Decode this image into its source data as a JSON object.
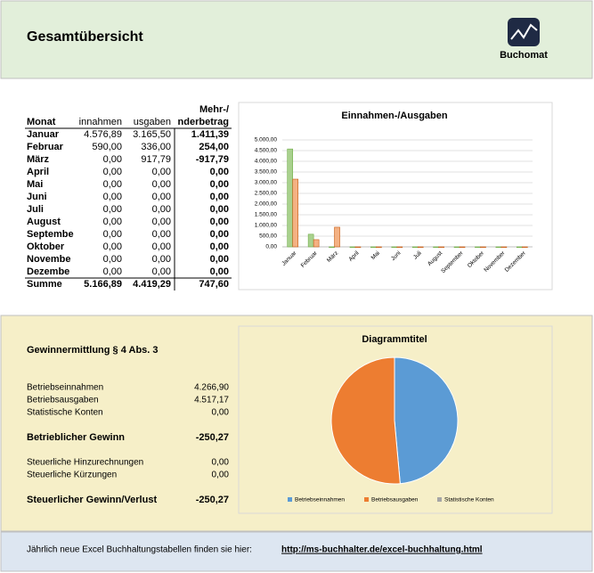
{
  "header": {
    "title": "Gesamtübersicht",
    "logo": "Buchomat"
  },
  "table": {
    "column_prefix": "Mehr-/",
    "columns": [
      "Monat",
      "innahmen",
      "usgaben",
      "nderbetrag"
    ],
    "rows": [
      [
        "Januar",
        "4.576,89",
        "3.165,50",
        "1.411,39"
      ],
      [
        "Februar",
        "590,00",
        "336,00",
        "254,00"
      ],
      [
        "März",
        "0,00",
        "917,79",
        "-917,79"
      ],
      [
        "April",
        "0,00",
        "0,00",
        "0,00"
      ],
      [
        "Mai",
        "0,00",
        "0,00",
        "0,00"
      ],
      [
        "Juni",
        "0,00",
        "0,00",
        "0,00"
      ],
      [
        "Juli",
        "0,00",
        "0,00",
        "0,00"
      ],
      [
        "August",
        "0,00",
        "0,00",
        "0,00"
      ],
      [
        "Septembe",
        "0,00",
        "0,00",
        "0,00"
      ],
      [
        "Oktober",
        "0,00",
        "0,00",
        "0,00"
      ],
      [
        "Novembe",
        "0,00",
        "0,00",
        "0,00"
      ],
      [
        "Dezembe",
        "0,00",
        "0,00",
        "0,00"
      ]
    ],
    "total": [
      "Summe",
      "5.166,89",
      "4.419,29",
      "747,60"
    ]
  },
  "chart_data": [
    {
      "type": "bar",
      "title": "Einnahmen-/Ausgaben",
      "categories": [
        "Januar",
        "Februar",
        "März",
        "April",
        "Mai",
        "Juni",
        "Juli",
        "August",
        "September",
        "Oktober",
        "November",
        "Dezember"
      ],
      "series": [
        {
          "color": "#a9d18e",
          "values": [
            4576.89,
            590,
            0,
            0,
            0,
            0,
            0,
            0,
            0,
            0,
            0,
            0
          ]
        },
        {
          "color": "#f4b183",
          "values": [
            3165.5,
            336,
            917.79,
            0,
            0,
            0,
            0,
            0,
            0,
            0,
            0,
            0
          ]
        }
      ],
      "ylim": [
        0,
        5000
      ],
      "yticks": [
        {
          "value": 0,
          "label": "0,00"
        },
        {
          "value": 500,
          "label": "500,00"
        },
        {
          "value": 1000,
          "label": "1.000,00"
        },
        {
          "value": 1500,
          "label": "1.500,00"
        },
        {
          "value": 2000,
          "label": "2.000,00"
        },
        {
          "value": 2500,
          "label": "2.500,00"
        },
        {
          "value": 3000,
          "label": "3.000,00"
        },
        {
          "value": 3500,
          "label": "3.500,00"
        },
        {
          "value": 4000,
          "label": "4.000,00"
        },
        {
          "value": 4500,
          "label": "4.500,00"
        },
        {
          "value": 5000,
          "label": "5.000,00"
        }
      ],
      "grid": true
    },
    {
      "type": "pie",
      "title": "Diagrammtitel",
      "categories": [
        "Betriebseinnahmen",
        "Betriebsausgaben",
        "Statistische Konten"
      ],
      "values": [
        4266.9,
        4517.17,
        0
      ],
      "colors": [
        "#5b9bd5",
        "#ed7d31",
        "#a5a5a5"
      ],
      "legend": "bottom"
    }
  ],
  "gewinnermittlung": {
    "title": "Gewinnermittlung § 4 Abs. 3",
    "rows": [
      [
        "Betriebseinnahmen",
        "4.266,90"
      ],
      [
        "Betriebsausgaben",
        "4.517,17"
      ],
      [
        "Statistische Konten",
        "0,00"
      ],
      [
        "Betrieblicher Gewinn",
        "-250,27"
      ],
      [
        "Steuerliche Hinzurechnungen",
        "0,00"
      ],
      [
        "Steuerliche Kürzungen",
        "0,00"
      ],
      [
        "Steuerlicher Gewinn/Verlust",
        "-250,27"
      ]
    ]
  },
  "footer": {
    "text": "Jährlich neue Excel Buchhaltungstabellen finden sie hier:",
    "link": "http://ms-buchhalter.de/excel-buchhaltung.html"
  }
}
